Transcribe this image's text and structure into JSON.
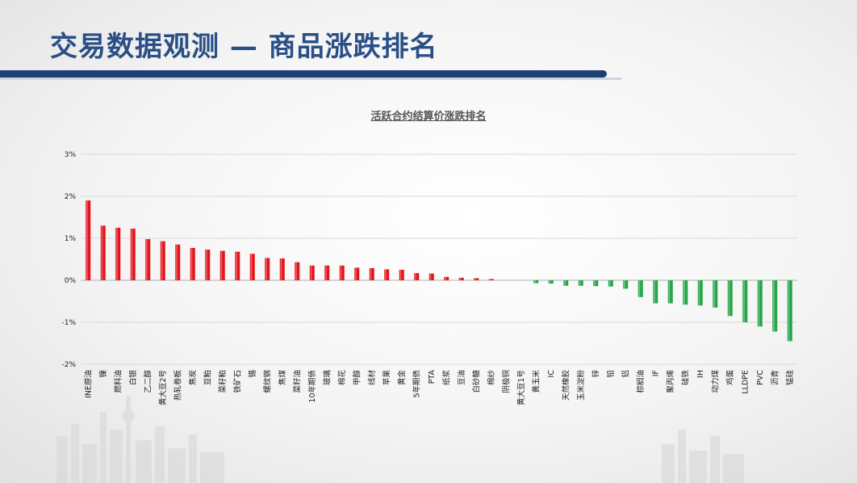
{
  "slide": {
    "title": "交易数据观测 — 商品涨跌排名"
  },
  "colors": {
    "title": "#2a4f86",
    "title_bar": "#1f3f73",
    "rise": "#e3141b",
    "fall": "#25a548",
    "grid": "#d9d9d9",
    "axis_text": "#222222"
  },
  "chart_data": {
    "type": "bar",
    "title": "活跃合约结算价涨跌排名",
    "xlabel": "",
    "ylabel": "",
    "ylim": [
      -2,
      3
    ],
    "yticks": [
      {
        "value": 3,
        "label": "3%"
      },
      {
        "value": 2,
        "label": "2%"
      },
      {
        "value": 1,
        "label": "1%"
      },
      {
        "value": 0,
        "label": "0%"
      },
      {
        "value": -1,
        "label": "-1%"
      },
      {
        "value": -2,
        "label": "-2%"
      }
    ],
    "grid": true,
    "categories": [
      "INE原油",
      "镍",
      "燃料油",
      "白银",
      "乙二醇",
      "黄大豆2号",
      "热轧卷板",
      "焦炭",
      "豆粕",
      "菜籽粕",
      "铁矿石",
      "锡",
      "螺纹钢",
      "焦煤",
      "菜籽油",
      "10年期债",
      "玻璃",
      "棉花",
      "甲醇",
      "线材",
      "苹果",
      "黄金",
      "5年期债",
      "PTA",
      "纸浆",
      "豆油",
      "白砂糖",
      "棉纱",
      "阴极铜",
      "黄大豆1号",
      "黄玉米",
      "IC",
      "天然橡胶",
      "玉米淀粉",
      "锌",
      "铅",
      "铝",
      "棕榈油",
      "IF",
      "聚丙烯",
      "硅铁",
      "IH",
      "动力煤",
      "鸡蛋",
      "LLDPE",
      "PVC",
      "沥青",
      "锰硅"
    ],
    "values": [
      1.9,
      1.3,
      1.25,
      1.23,
      0.98,
      0.93,
      0.85,
      0.77,
      0.73,
      0.7,
      0.68,
      0.63,
      0.53,
      0.52,
      0.43,
      0.35,
      0.35,
      0.35,
      0.3,
      0.29,
      0.26,
      0.25,
      0.17,
      0.16,
      0.08,
      0.06,
      0.05,
      0.03,
      0.0,
      0.0,
      -0.07,
      -0.08,
      -0.13,
      -0.13,
      -0.14,
      -0.15,
      -0.2,
      -0.4,
      -0.55,
      -0.55,
      -0.58,
      -0.6,
      -0.65,
      -0.85,
      -1.0,
      -1.1,
      -1.22,
      -1.45
    ]
  }
}
